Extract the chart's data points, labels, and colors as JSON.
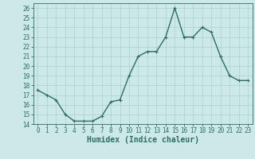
{
  "x": [
    0,
    1,
    2,
    3,
    4,
    5,
    6,
    7,
    8,
    9,
    10,
    11,
    12,
    13,
    14,
    15,
    16,
    17,
    18,
    19,
    20,
    21,
    22,
    23
  ],
  "y": [
    17.5,
    17.0,
    16.5,
    15.0,
    14.3,
    14.3,
    14.3,
    14.8,
    16.3,
    16.5,
    19.0,
    21.0,
    21.5,
    21.5,
    23.0,
    26.0,
    23.0,
    23.0,
    24.0,
    23.5,
    21.0,
    19.0,
    18.5,
    18.5
  ],
  "line_color": "#2d6e5e",
  "marker": "+",
  "marker_color": "#2d6e5e",
  "bg_color": "#cce8e8",
  "grid_color": "#afd0d0",
  "xlabel": "Humidex (Indice chaleur)",
  "xlim": [
    -0.5,
    23.5
  ],
  "ylim": [
    14,
    26.5
  ],
  "yticks": [
    14,
    15,
    16,
    17,
    18,
    19,
    20,
    21,
    22,
    23,
    24,
    25,
    26
  ],
  "xticks": [
    0,
    1,
    2,
    3,
    4,
    5,
    6,
    7,
    8,
    9,
    10,
    11,
    12,
    13,
    14,
    15,
    16,
    17,
    18,
    19,
    20,
    21,
    22,
    23
  ],
  "tick_fontsize": 5.5,
  "label_fontsize": 7,
  "marker_size": 3.5,
  "line_width": 1.0
}
